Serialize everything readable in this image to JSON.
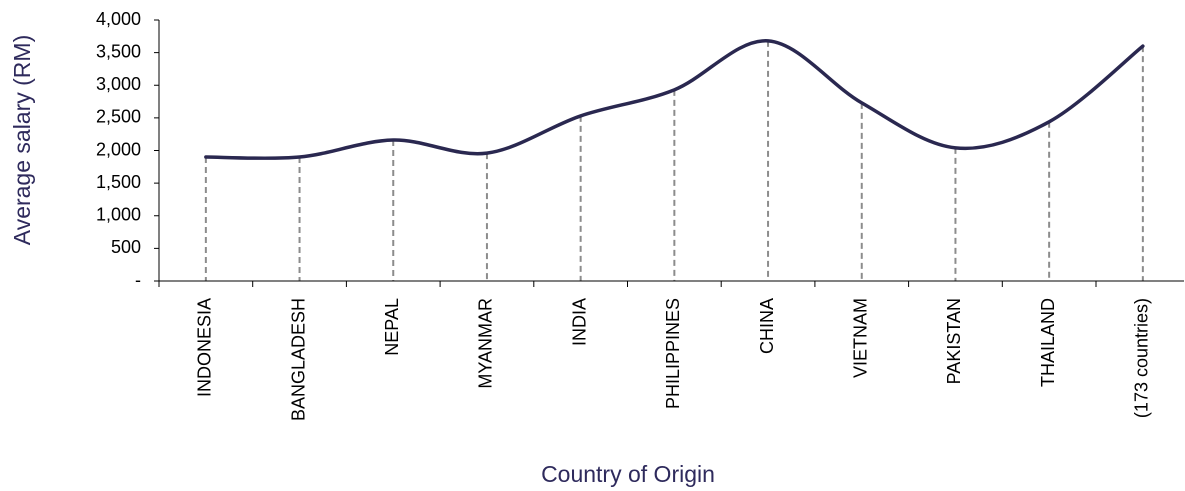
{
  "chart_data": {
    "type": "line",
    "x_label": "Country of Origin",
    "y_label": "Average salary (RM)",
    "categories": [
      "INDONESIA",
      "BANGLADESH",
      "NEPAL",
      "MYANMAR",
      "INDIA",
      "PHILIPPINES",
      "CHINA",
      "VIETNAM",
      "PAKISTAN",
      "THAILAND",
      "(173 countries)"
    ],
    "series": [
      {
        "name": "Average salary",
        "color": "#2a2850",
        "values": [
          1900,
          1900,
          2160,
          1960,
          2530,
          2930,
          3680,
          2730,
          2040,
          2440,
          3600
        ]
      }
    ],
    "ylim": [
      0,
      4000
    ],
    "yticks": [
      {
        "value": 0,
        "label": "-"
      },
      500,
      {
        "value": 1000,
        "label": "1,000"
      },
      {
        "value": 1500,
        "label": "1,500"
      },
      {
        "value": 2000,
        "label": "2,000"
      },
      {
        "value": 2500,
        "label": "2,500"
      },
      {
        "value": 3000,
        "label": "3,000"
      },
      {
        "value": 3500,
        "label": "3,500"
      },
      {
        "value": 4000,
        "label": "4,000"
      }
    ],
    "smooth": true,
    "drop_lines": true
  }
}
